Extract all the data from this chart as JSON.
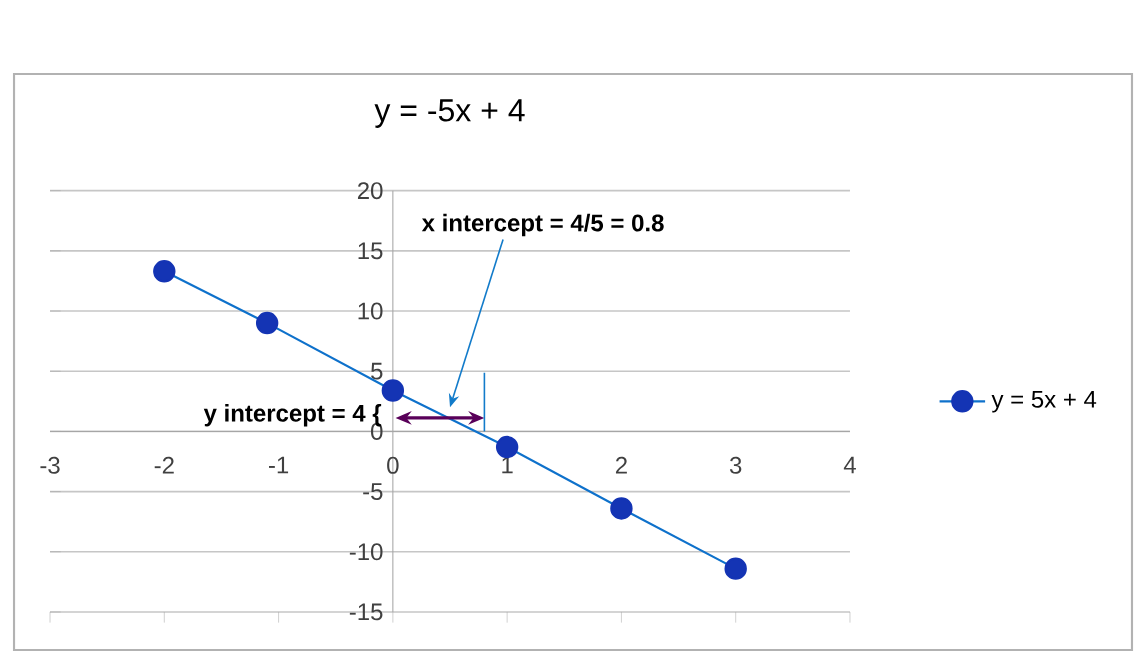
{
  "chart_data": {
    "type": "line",
    "title": "y = -5x + 4",
    "x": [
      -2,
      -1.1,
      0,
      1,
      2,
      3
    ],
    "series": [
      {
        "name": "y = 5x + 4",
        "color": "#1434b4",
        "values": [
          13.3,
          9,
          3.4,
          -1.3,
          -6.4,
          -11.4
        ]
      }
    ],
    "xlim": [
      -3,
      4
    ],
    "xticks": [
      -3,
      -2,
      -1,
      0,
      1,
      2,
      3,
      4
    ],
    "ylim": [
      -15,
      20
    ],
    "yticks": [
      -15,
      -10,
      -5,
      0,
      5,
      10,
      15,
      20
    ],
    "grid": "y",
    "legend": "right",
    "marker": "circle",
    "annotations": [
      {
        "text": "y intercept = 4 {",
        "x": 0,
        "y": 4
      },
      {
        "text": "x intercept = 4/5 = 0.8",
        "x": 0.5,
        "y": 2
      }
    ]
  }
}
